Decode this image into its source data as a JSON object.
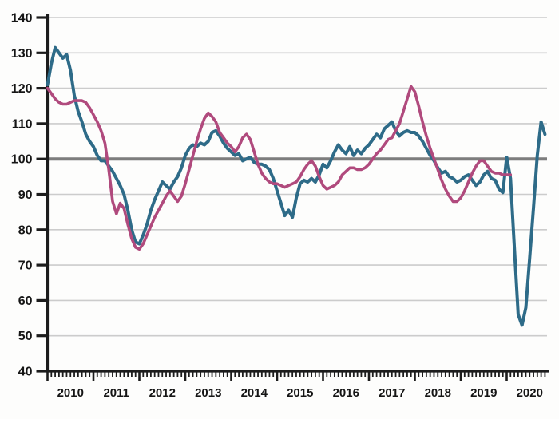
{
  "chart_data": {
    "type": "line",
    "title": "",
    "legend": "none",
    "grid": true,
    "background": "#fdfdfc",
    "x_axis": {
      "unit": "year",
      "tick_labels": [
        "2010",
        "2011",
        "2012",
        "2013",
        "2014",
        "2015",
        "2016",
        "2017",
        "2018",
        "2019",
        "2020"
      ],
      "minor_ticks": "monthly",
      "range_start": "2010-01",
      "range_end": "2020-12"
    },
    "y_axis": {
      "min": 40,
      "max": 140,
      "step": 10,
      "tick_labels": [
        "140",
        "130",
        "120",
        "110",
        "100",
        "90",
        "80",
        "70",
        "60",
        "50",
        "40"
      ]
    },
    "reference_line": {
      "value": 100,
      "color": "#7d7d7d"
    },
    "axis_color": "#1c1c1c",
    "gridline_color": "#cccccc",
    "series": [
      {
        "name": "teal-line",
        "color": "#2e6b88",
        "stroke_width": 4,
        "start": "2010-01",
        "values": [
          121,
          127,
          131.5,
          130,
          128.5,
          129.5,
          125,
          118,
          113.5,
          110.5,
          107,
          105,
          103.5,
          101,
          99.5,
          99.5,
          98,
          96.5,
          94.5,
          92.5,
          90,
          85.5,
          80,
          76.5,
          76,
          78.5,
          81.5,
          85.5,
          88.5,
          91,
          93.5,
          92.5,
          91.5,
          93.5,
          95,
          97.5,
          101,
          103,
          104,
          103.5,
          104.5,
          104,
          105,
          107.5,
          108,
          106.5,
          104.5,
          103,
          102,
          101,
          101.5,
          99.5,
          100,
          100.5,
          99,
          98.5,
          98.5,
          98,
          97,
          94.5,
          91,
          87.5,
          84,
          85.5,
          83.5,
          89,
          93,
          94,
          93.5,
          94.5,
          93.5,
          95.5,
          98.5,
          97.5,
          99.5,
          102,
          104,
          102.5,
          101.5,
          103.5,
          101,
          102.5,
          101.5,
          103,
          104,
          105.5,
          107,
          106,
          108.5,
          109.5,
          110.5,
          108,
          106.5,
          107.5,
          108,
          107.5,
          107.5,
          106.5,
          105,
          103,
          101,
          99.5,
          97.5,
          96,
          96.5,
          95,
          94.5,
          93.5,
          94,
          95,
          95.5,
          94,
          92.5,
          93.5,
          95.5,
          96.5,
          94.5,
          94,
          91.5,
          90.5,
          100.5,
          94.5,
          75,
          56,
          53,
          58,
          72,
          86,
          101,
          110.5,
          107
        ]
      },
      {
        "name": "pink-line",
        "color": "#b04a7d",
        "stroke_width": 3.6,
        "start": "2010-01",
        "values": [
          120,
          118.5,
          117,
          116,
          115.5,
          115.5,
          116,
          116.5,
          116.5,
          116.5,
          116,
          114.5,
          112.5,
          110.5,
          108,
          104.5,
          97,
          88,
          84.5,
          87.5,
          86,
          81.5,
          77.5,
          75,
          74.5,
          76,
          78.5,
          81,
          83.5,
          85.5,
          87.5,
          89.5,
          91,
          89.5,
          88,
          89.5,
          93,
          97,
          101,
          105,
          108.5,
          111.5,
          113,
          112,
          110.5,
          107.5,
          106,
          104.5,
          103.5,
          102,
          103.5,
          106,
          107,
          105.5,
          102,
          98.5,
          96,
          94.5,
          93.5,
          93,
          93,
          92.5,
          92,
          92.5,
          93,
          93.5,
          95,
          97,
          98.5,
          99.5,
          98,
          95,
          92.5,
          91.5,
          92,
          92.5,
          93.5,
          95.5,
          96.5,
          97.5,
          97.5,
          97,
          97,
          97.5,
          98.5,
          100,
          101.5,
          102.5,
          104,
          105.5,
          106,
          108,
          110,
          113.5,
          117,
          120.5,
          119,
          115,
          110.5,
          106.5,
          103,
          100,
          97,
          94,
          91.5,
          89.5,
          88,
          88,
          89,
          91,
          93.5,
          96,
          98,
          99.5,
          99.5,
          98,
          96.5,
          96,
          96,
          95.5,
          95.5,
          95.5
        ]
      }
    ]
  }
}
